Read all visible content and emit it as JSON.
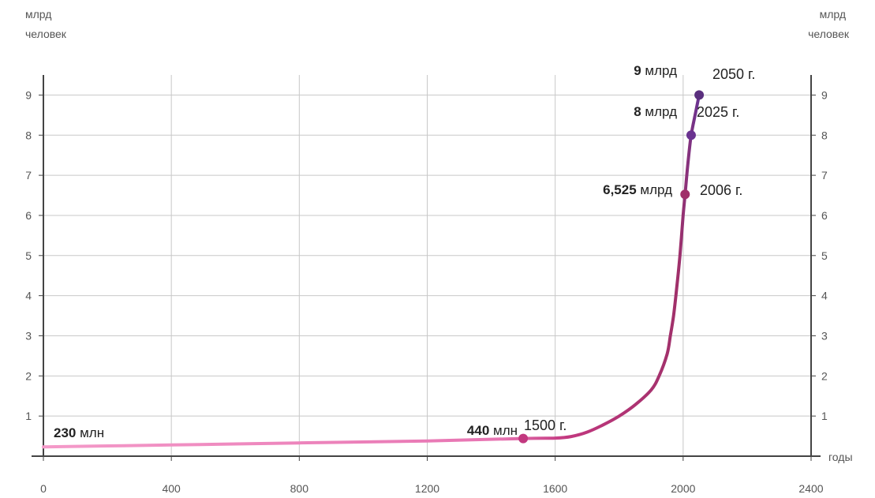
{
  "chart_data": {
    "type": "line",
    "left_axis_label": [
      "млрд",
      "человек"
    ],
    "right_axis_label": [
      "млрд",
      "человек"
    ],
    "x_axis_label": "годы",
    "xlim": [
      0,
      2400
    ],
    "ylim": [
      0,
      9.5
    ],
    "x_ticks": [
      "0",
      "400",
      "800",
      "1200",
      "1600",
      "2000",
      "2400"
    ],
    "y_ticks": [
      "1",
      "2",
      "3",
      "4",
      "5",
      "6",
      "7",
      "8",
      "9"
    ],
    "grid": true,
    "colors": {
      "start": "#f49ac9",
      "mid": "#c2387f",
      "end": "#6a3390",
      "grid": "#c8c8c8",
      "axis": "#444444"
    },
    "series": [
      {
        "x": [
          0,
          400,
          800,
          1200,
          1500,
          1600,
          1650,
          1700,
          1750,
          1800,
          1850,
          1900,
          1925,
          1950,
          1960,
          1970,
          1980,
          1990,
          2000,
          2006,
          2015,
          2025,
          2040,
          2050
        ],
        "y": [
          0.23,
          0.28,
          0.33,
          0.38,
          0.44,
          0.45,
          0.49,
          0.6,
          0.78,
          1.0,
          1.28,
          1.65,
          2.0,
          2.55,
          3.0,
          3.5,
          4.2,
          5.0,
          6.0,
          6.525,
          7.3,
          8.0,
          8.6,
          9.0
        ]
      }
    ],
    "annotations": [
      {
        "x": 0,
        "y": 0.23,
        "value_bold": "230",
        "value_unit": "млн",
        "year": "",
        "marker": false
      },
      {
        "x": 1500,
        "y": 0.44,
        "value_bold": "440",
        "value_unit": "млн",
        "year": "1500 г.",
        "marker": true
      },
      {
        "x": 2006,
        "y": 6.525,
        "value_bold": "6,525",
        "value_unit": "млрд",
        "year": "2006 г.",
        "marker": true
      },
      {
        "x": 2025,
        "y": 8.0,
        "value_bold": "8",
        "value_unit": "млрд",
        "year": "2025 г.",
        "marker": true
      },
      {
        "x": 2050,
        "y": 9.0,
        "value_bold": "9",
        "value_unit": "млрд",
        "year": "2050 г.",
        "marker": true
      }
    ]
  }
}
